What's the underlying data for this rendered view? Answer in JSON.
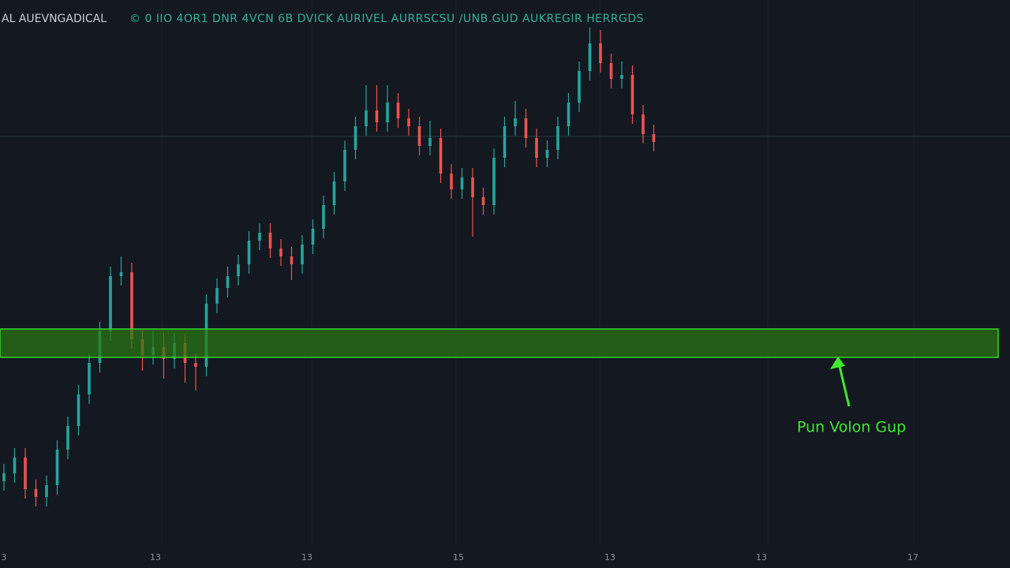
{
  "chart_data": {
    "type": "candlestick",
    "title": "AL AUEVNGADICAL",
    "subtitle": "© 0  IIO 4OR1 DNR 4VCN 6B DVICK AURIVEL AURRSCSU ∕UNB.GUD AUKREGIR HERRGDS",
    "x_labels": [
      "3",
      "13",
      "13",
      "15",
      "13",
      "13",
      "17"
    ],
    "ylim": [
      0,
      720
    ],
    "up_color": "#26a69a",
    "down_color": "#ef5350",
    "series": [
      {
        "open": [
          110,
          120,
          140,
          100,
          90,
          105,
          150,
          180,
          220,
          260,
          300,
          370,
          375,
          290,
          270,
          280,
          265,
          285,
          260,
          255,
          335,
          355,
          370,
          385,
          415,
          425,
          405,
          395,
          385,
          410,
          430,
          460,
          490,
          530,
          560,
          580,
          565,
          590,
          570,
          560,
          535,
          545,
          500,
          480,
          495,
          470,
          460,
          520,
          560,
          570,
          545,
          520,
          530,
          560,
          590,
          630,
          665,
          640,
          620,
          625,
          575,
          550
        ],
        "high": [
          132,
          152,
          152,
          112,
          117,
          162,
          192,
          232,
          272,
          312,
          382,
          395,
          387,
          302,
          300,
          298,
          297,
          297,
          272,
          347,
          367,
          382,
          397,
          427,
          437,
          437,
          417,
          407,
          422,
          442,
          472,
          502,
          542,
          572,
          612,
          612,
          612,
          602,
          582,
          572,
          567,
          557,
          512,
          507,
          507,
          482,
          532,
          572,
          592,
          582,
          557,
          542,
          572,
          602,
          642,
          685,
          682,
          652,
          642,
          637,
          587,
          562
        ],
        "low": [
          98,
          108,
          88,
          78,
          78,
          93,
          138,
          168,
          208,
          248,
          288,
          358,
          278,
          250,
          258,
          240,
          253,
          235,
          225,
          243,
          323,
          343,
          358,
          373,
          403,
          393,
          383,
          365,
          373,
          398,
          418,
          448,
          478,
          518,
          548,
          553,
          553,
          558,
          548,
          523,
          523,
          488,
          468,
          468,
          420,
          448,
          448,
          508,
          548,
          533,
          508,
          508,
          518,
          548,
          578,
          618,
          628,
          608,
          608,
          563,
          538,
          528
        ],
        "close": [
          120,
          140,
          100,
          90,
          105,
          150,
          180,
          220,
          260,
          300,
          370,
          375,
          290,
          270,
          280,
          265,
          285,
          260,
          255,
          335,
          355,
          370,
          385,
          415,
          425,
          405,
          395,
          385,
          410,
          430,
          460,
          490,
          530,
          560,
          580,
          565,
          590,
          570,
          560,
          535,
          545,
          500,
          480,
          495,
          470,
          460,
          520,
          560,
          570,
          545,
          520,
          530,
          560,
          590,
          630,
          665,
          640,
          620,
          625,
          575,
          550,
          540
        ]
      }
    ],
    "level": 547,
    "zone": [
      267,
      303
    ],
    "zone_color": "#2a7a14",
    "annotation": "Pun Volon Gup"
  }
}
